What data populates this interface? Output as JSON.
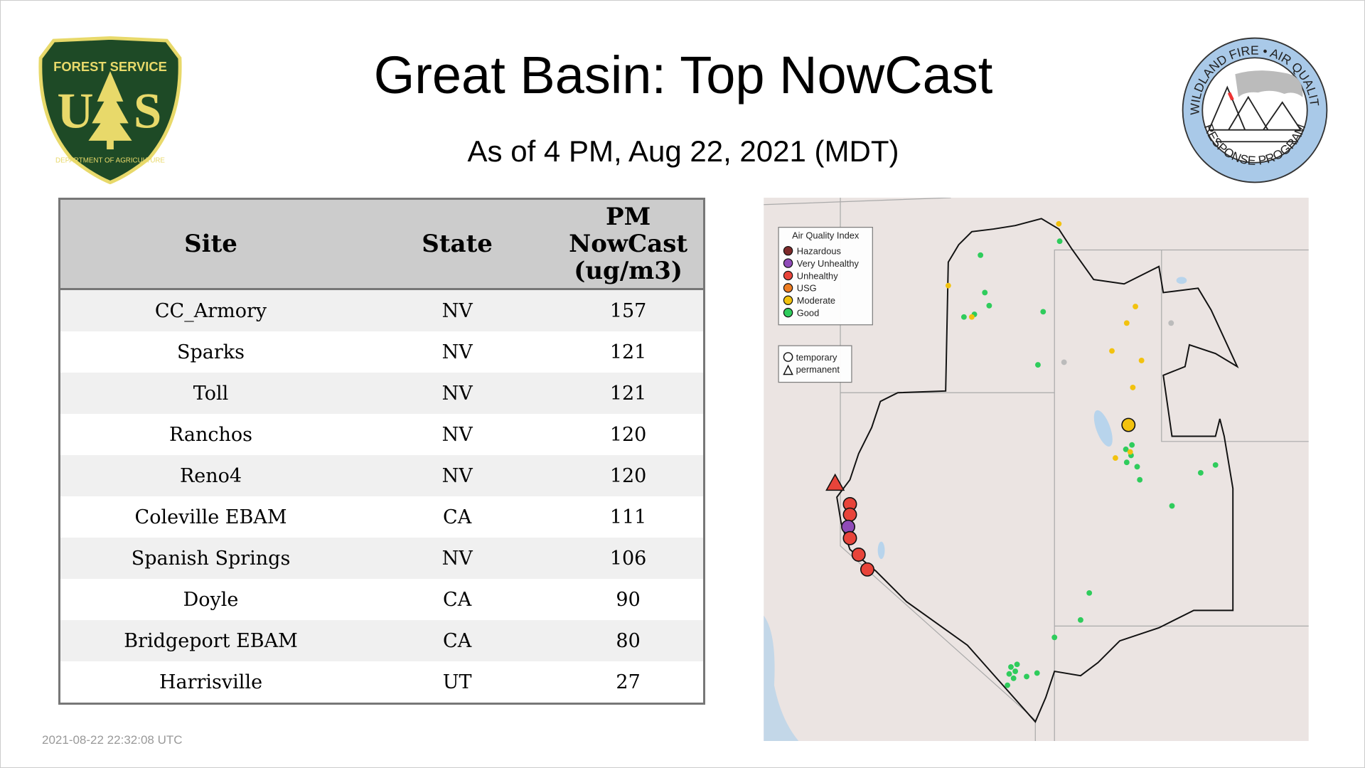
{
  "header": {
    "title": "Great Basin: Top NowCast",
    "subtitle": "As of  4 PM, Aug 22, 2021 (MDT)"
  },
  "logos": {
    "left": "FOREST SERVICE U S DEPARTMENT OF AGRICULTURE",
    "right": "WILDLAND FIRE • AIR QUALITY RESPONSE PROGRAM"
  },
  "table": {
    "columns": [
      "Site",
      "State",
      "PM NowCast (ug/m3)"
    ],
    "rows": [
      [
        "CC_Armory",
        "NV",
        "157"
      ],
      [
        "Sparks",
        "NV",
        "121"
      ],
      [
        "Toll",
        "NV",
        "121"
      ],
      [
        "Ranchos",
        "NV",
        "120"
      ],
      [
        "Reno4",
        "NV",
        "120"
      ],
      [
        "Coleville EBAM",
        "CA",
        "111"
      ],
      [
        "Spanish Springs",
        "NV",
        "106"
      ],
      [
        "Doyle",
        "CA",
        "90"
      ],
      [
        "Bridgeport EBAM",
        "CA",
        "80"
      ],
      [
        "Harrisville",
        "UT",
        "27"
      ]
    ]
  },
  "map": {
    "legend_title": "Air Quality Index",
    "legend": [
      {
        "label": "Hazardous",
        "color": "#7e2a2a"
      },
      {
        "label": "Very Unhealthy",
        "color": "#8f4bb8"
      },
      {
        "label": "Unhealthy",
        "color": "#e8443a"
      },
      {
        "label": "USG",
        "color": "#ee7d22"
      },
      {
        "label": "Moderate",
        "color": "#f2c20f"
      },
      {
        "label": "Good",
        "color": "#2fcc5c"
      }
    ],
    "types": [
      {
        "label": "temporary",
        "shape": "circle"
      },
      {
        "label": "permanent",
        "shape": "triangle"
      }
    ]
  },
  "timestamp": "2021-08-22 22:32:08 UTC"
}
